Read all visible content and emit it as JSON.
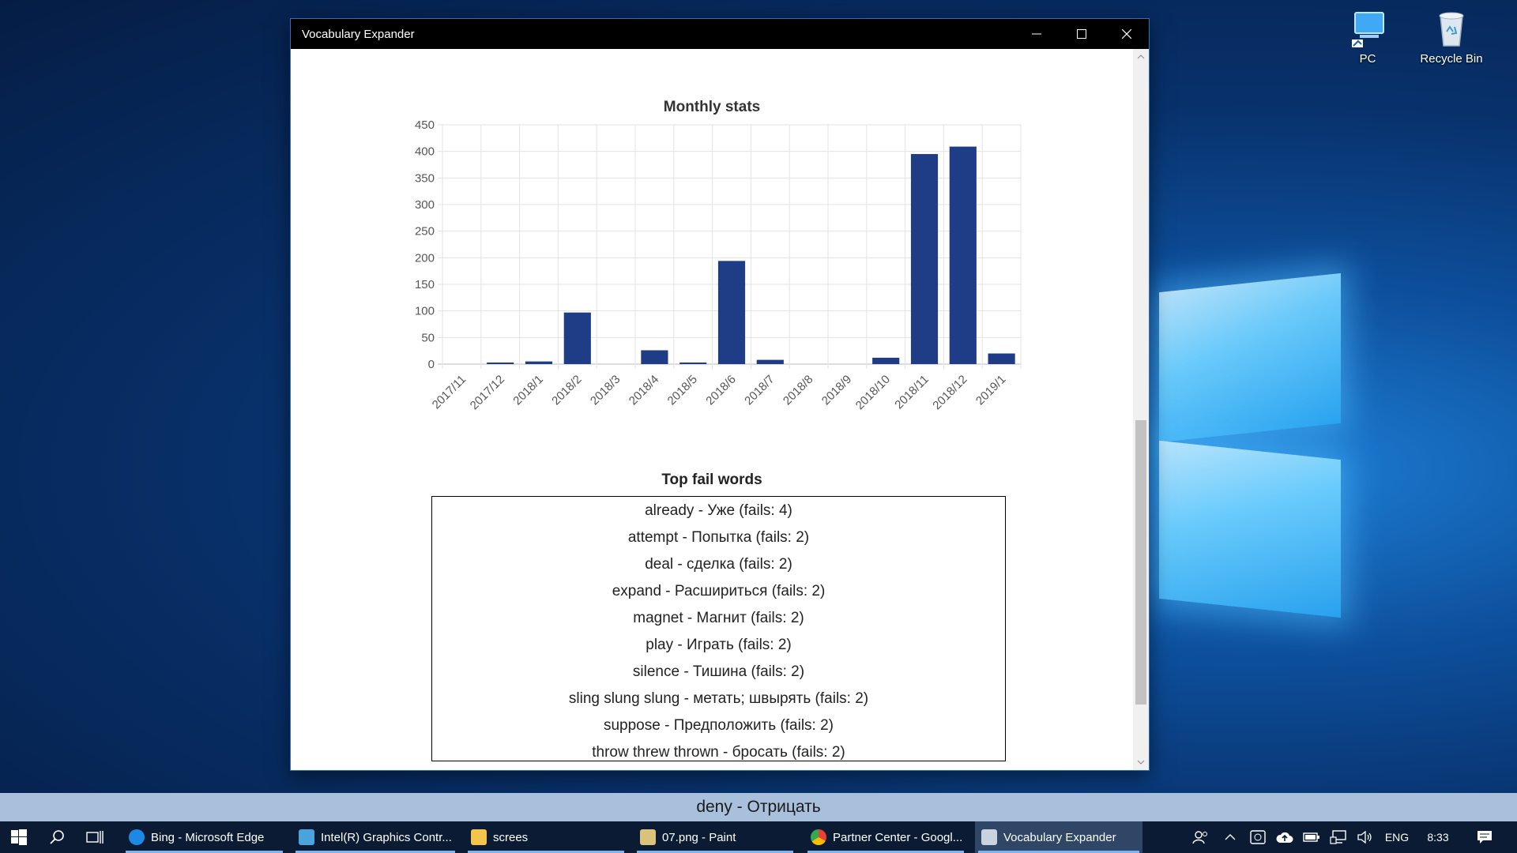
{
  "desktop": {
    "icons": [
      {
        "label": "PC",
        "icon": "pc-icon"
      },
      {
        "label": "Recycle Bin",
        "icon": "recycle-bin-icon"
      }
    ]
  },
  "window": {
    "title": "Vocabulary Expander",
    "controls": {
      "minimize": "minimize-icon",
      "maximize": "maximize-icon",
      "close": "close-icon"
    }
  },
  "chart_data": {
    "type": "bar",
    "title": "Monthly stats",
    "categories": [
      "2017/11",
      "2017/12",
      "2018/1",
      "2018/2",
      "2018/3",
      "2018/4",
      "2018/5",
      "2018/6",
      "2018/7",
      "2018/8",
      "2018/9",
      "2018/10",
      "2018/11",
      "2018/12",
      "2019/1"
    ],
    "values": [
      0,
      3,
      5,
      97,
      0,
      26,
      3,
      194,
      8,
      0,
      0,
      12,
      395,
      409,
      20
    ],
    "ylim": [
      0,
      450
    ],
    "yticks": [
      0,
      50,
      100,
      150,
      200,
      250,
      300,
      350,
      400,
      450
    ],
    "grid": true,
    "bar_color": "#1f3d86"
  },
  "fail_words": {
    "title": "Top fail words",
    "items": [
      "already - Уже (fails: 4)",
      "attempt - Попытка (fails: 2)",
      "deal - сделка (fails: 2)",
      "expand - Расшириться (fails: 2)",
      "magnet - Магнит (fails: 2)",
      "play - Играть (fails: 2)",
      "silence - Тишина (fails: 2)",
      "sling slung slung - метать; швырять (fails: 2)",
      "suppose - Предположить (fails: 2)",
      "throw threw thrown - бросать (fails: 2)"
    ]
  },
  "status_bar": {
    "text": "deny - Отрицать"
  },
  "taskbar": {
    "tasks": [
      {
        "label": "Bing - Microsoft Edge",
        "icon": "edge-icon",
        "color": "#1e88e5"
      },
      {
        "label": "Intel(R) Graphics Contr...",
        "icon": "intel-graphics-icon",
        "color": "#4aa3df"
      },
      {
        "label": "screes",
        "icon": "folder-icon",
        "color": "#f3c64b"
      },
      {
        "label": "07.png - Paint",
        "icon": "paint-icon",
        "color": "#d9c27a"
      },
      {
        "label": "Partner Center - Googl...",
        "icon": "chrome-icon",
        "color": "#e94235"
      },
      {
        "label": "Vocabulary Expander",
        "icon": "vocabulary-app-icon",
        "color": "#c9d3e0"
      }
    ],
    "language": "ENG",
    "time": "8:33"
  }
}
